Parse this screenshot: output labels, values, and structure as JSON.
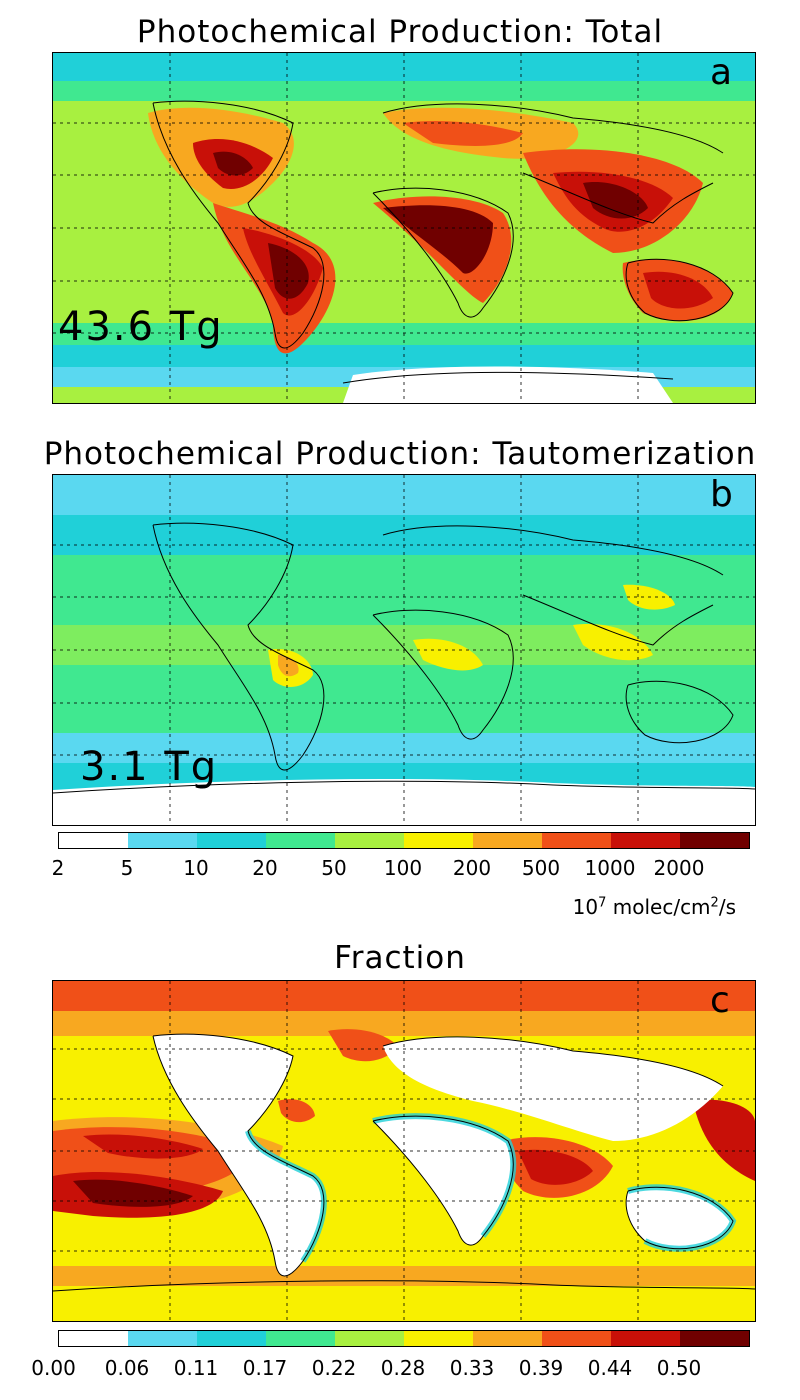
{
  "panels": [
    {
      "title": "Photochemical Production: Total",
      "letter": "a",
      "annotation": "43.6 Tg"
    },
    {
      "title": "Photochemical Production: Tautomerization",
      "letter": "b",
      "annotation": "3.1 Tg"
    },
    {
      "title": "Fraction",
      "letter": "c",
      "annotation": ""
    }
  ],
  "colorbar_production": {
    "colors": [
      "#ffffff",
      "#5ad8f0",
      "#20d0d8",
      "#40e890",
      "#a8f040",
      "#f8f000",
      "#f8a820",
      "#f05018",
      "#c81008",
      "#700000"
    ],
    "tick_labels": [
      "2",
      "5",
      "10",
      "20",
      "50",
      "100",
      "200",
      "500",
      "1000",
      "2000"
    ],
    "units": {
      "base": "10",
      "exp": "7",
      "rest": " molec/cm",
      "exp2": "2",
      "tail": "/s"
    }
  },
  "colorbar_fraction": {
    "colors": [
      "#ffffff",
      "#5ad8f0",
      "#20d0d8",
      "#40e890",
      "#a8f040",
      "#f8f000",
      "#f8a820",
      "#f05018",
      "#c81008",
      "#700000"
    ],
    "tick_labels": [
      "0.00",
      "0.06",
      "0.11",
      "0.17",
      "0.22",
      "0.28",
      "0.33",
      "0.39",
      "0.44",
      "0.50"
    ]
  }
}
